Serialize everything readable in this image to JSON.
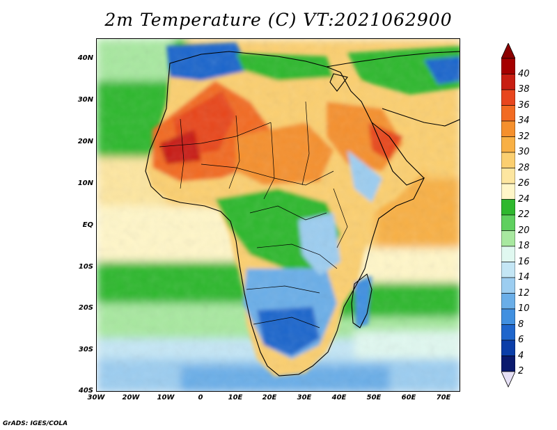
{
  "title": "2m Temperature (C) VT:2021062900",
  "footer": "GrADS: IGES/COLA",
  "map": {
    "projection": "lat-lon",
    "lon_range": [
      -30,
      75
    ],
    "lat_range": [
      -40,
      45
    ],
    "lat_ticks": [
      "40N",
      "30N",
      "20N",
      "10N",
      "EQ",
      "10S",
      "20S",
      "30S",
      "40S"
    ],
    "lon_ticks": [
      "30W",
      "20W",
      "10W",
      "0",
      "10E",
      "20E",
      "30E",
      "40E",
      "50E",
      "60E",
      "70E"
    ],
    "variable": "2m temperature",
    "units": "C",
    "valid_time": "2021062900"
  },
  "colorbar": {
    "levels": [
      "40",
      "38",
      "36",
      "34",
      "32",
      "30",
      "28",
      "26",
      "24",
      "22",
      "20",
      "18",
      "16",
      "14",
      "12",
      "10",
      "8",
      "6",
      "4",
      "2"
    ],
    "colors": [
      "#a50000",
      "#c81e12",
      "#e8461e",
      "#f26b22",
      "#f5902d",
      "#f8b045",
      "#fbcf70",
      "#fde6a0",
      "#fff6c8",
      "#2eb82e",
      "#5fd05f",
      "#a8e8a0",
      "#e0f8f0",
      "#c4e6f5",
      "#9ccdf0",
      "#6aaee8",
      "#4190e0",
      "#1f66cc",
      "#0b3ea8",
      "#0a1a6e"
    ],
    "top_arrow_color": "#8b0000",
    "bottom_arrow_color": "#e6e0f5"
  }
}
